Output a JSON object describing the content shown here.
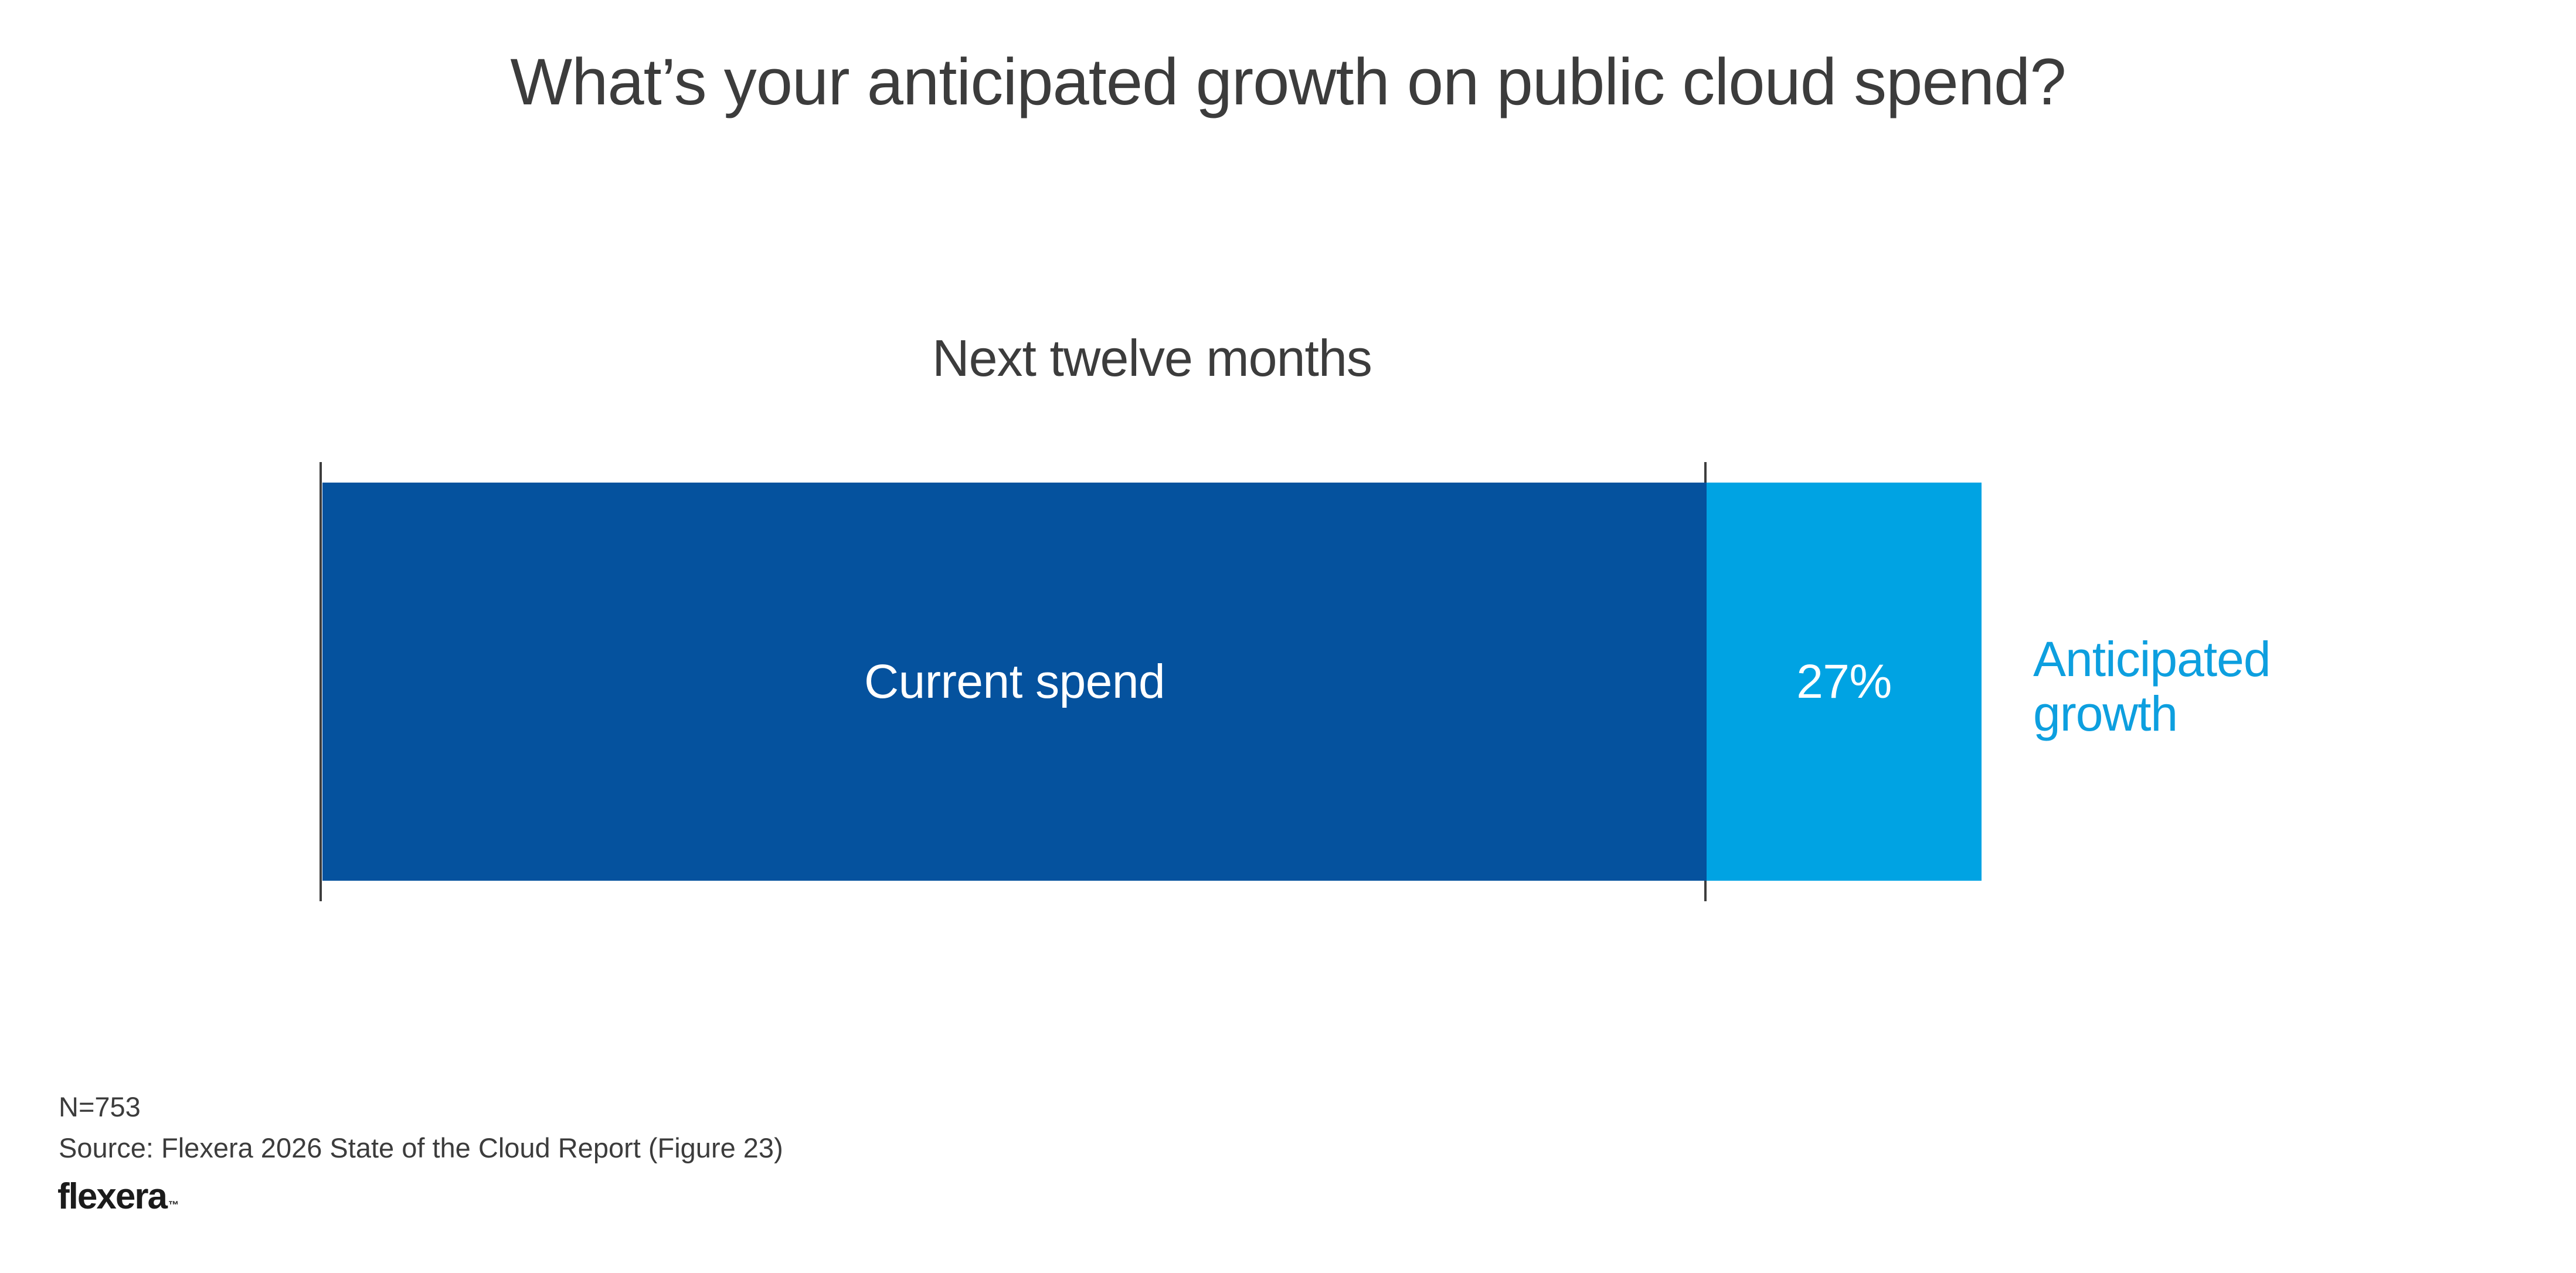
{
  "header": {
    "title": "What’s your anticipated growth on public cloud spend?"
  },
  "chart_data": {
    "type": "bar",
    "orientation": "horizontal",
    "title": "What’s your anticipated growth on public cloud spend?",
    "subtitle": "Next twelve months",
    "categories": [
      "Next twelve months"
    ],
    "series": [
      {
        "name": "Current spend",
        "bar_label": "Current spend",
        "value": 100,
        "unit": "%",
        "color": "#05529e"
      },
      {
        "name": "Anticipated growth",
        "bar_label": "27%",
        "value": 27,
        "unit": "%",
        "color": "#00a3e3"
      }
    ],
    "side_annotation": "Anticipated growth",
    "grid": false,
    "legend_position": "right",
    "axis_markers": 2
  },
  "footer": {
    "sample_size": "N=753",
    "source": "Source: Flexera 2026 State of the Cloud Report (Figure 23)",
    "logo_text": "flexera",
    "logo_trademark": "™"
  },
  "colors": {
    "bg": "#ffffff",
    "dark_blue": "#05529e",
    "light_blue": "#00a3e3",
    "annotation_blue": "#0d9fdf",
    "text_gray": "#3c3c3c",
    "tick_gray": "#3e3e3e",
    "logo_black": "#1b1b1b",
    "bar_text_white": "#ffffff"
  }
}
